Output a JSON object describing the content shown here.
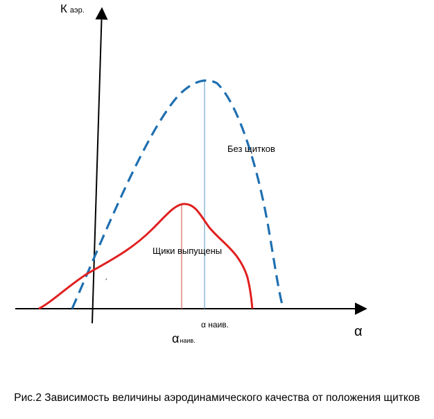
{
  "diagram": {
    "y_axis": {
      "symbol": "К",
      "subscript": "аэр."
    },
    "x_axis": {
      "symbol": "α"
    },
    "curve_no_flaps": {
      "label": "Без щитков",
      "color": "#1f6fb0",
      "style": "dashed"
    },
    "curve_flaps": {
      "label": "Щики выпущены",
      "color": "#e02020",
      "style": "solid"
    },
    "alpha_best_no_flaps": "α наив.",
    "alpha_best_flaps": {
      "symbol": "α",
      "subscript": "наив."
    },
    "stray_mark": "ˏ"
  },
  "caption": "Рис.2 Зависимость величины аэродинамического качества от положения щитков"
}
